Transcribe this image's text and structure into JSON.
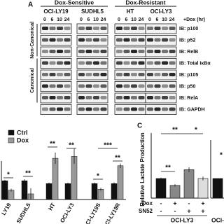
{
  "panel_a": {
    "label": "A",
    "groups": [
      {
        "name": "Dox-Sensitive",
        "lines": [
          "OCI-LY19",
          "SUDHL5"
        ]
      },
      {
        "name": "Dox-Resistant",
        "lines": [
          "HT",
          "OCI-LY3"
        ]
      }
    ],
    "timepoints": [
      "0",
      "6",
      "10",
      "24"
    ],
    "treatment": "+Dox (hr)",
    "sections": [
      "Non-Canonical",
      "Canonical"
    ],
    "blots": [
      "IB: p100",
      "IB: p52",
      "IB: RelB",
      "IB: Total IκBα",
      "IB: p105",
      "IB: p50",
      "IB: RelA",
      "IB: GAPDH"
    ]
  },
  "chart_data": [
    {
      "type": "bar",
      "categories": [
        "LY19",
        "SUDHL5",
        "HT",
        "OCI-LY3",
        "OCI-LY19S",
        "OCI-LY19R"
      ],
      "series": [
        {
          "name": "Ctrl",
          "color": "#111111",
          "values": [
            1.0,
            1.0,
            0.85,
            0.85,
            0.85,
            0.85
          ],
          "errors": [
            0.05,
            0.08,
            0.05,
            0.05,
            0.05,
            0.06
          ]
        },
        {
          "name": "Dox",
          "color": "#999999",
          "values": [
            0.5,
            0.3,
            2.2,
            2.3,
            0.55,
            1.8
          ],
          "errors": [
            0.08,
            0.3,
            0.3,
            0.4,
            0.08,
            0.12
          ]
        }
      ],
      "annotations": [
        "*",
        "**",
        "**",
        "**",
        "*",
        "***",
        "**"
      ],
      "ylim": [
        0,
        2.8
      ]
    },
    {
      "type": "bar",
      "label": "C",
      "ylabel": "Relative Lactate Production",
      "values": [
        1.0,
        0.65,
        1.45,
        1.0
      ],
      "errors": [
        0.04,
        0.06,
        0.12,
        0.1
      ],
      "colors": [
        "#111111",
        "#888888",
        "#888888",
        "#dddddd"
      ],
      "rows": [
        {
          "label": "Dox",
          "signs": [
            "-",
            "+",
            "-",
            "+"
          ]
        },
        {
          "label": "SN52",
          "signs": [
            "-",
            "-",
            "+",
            "+"
          ]
        }
      ],
      "group_label": "OCI-LY3",
      "annotations": [
        "**",
        "**",
        "*"
      ],
      "ylim": [
        0,
        2
      ]
    },
    {
      "type": "bar",
      "categories": [
        "OCI-"
      ],
      "values": [
        1.0
      ],
      "color": "#111111",
      "annotations": [
        "*"
      ],
      "ylim": [
        0,
        2
      ]
    }
  ]
}
